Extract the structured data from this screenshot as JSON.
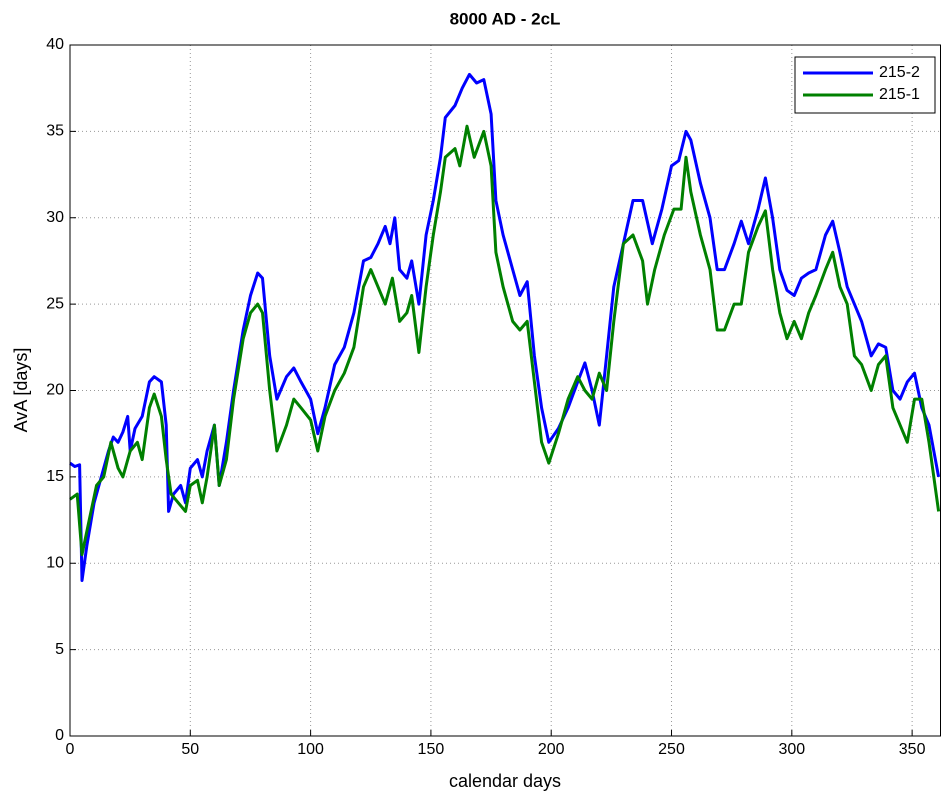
{
  "chart_data": {
    "type": "line",
    "title": "8000 AD - 2cL",
    "x_label": "calendar days",
    "y_label": "AvA [days]",
    "xlim": [
      0,
      362
    ],
    "ylim": [
      0,
      40
    ],
    "xticks": [
      0,
      50,
      100,
      150,
      200,
      250,
      300,
      350
    ],
    "yticks": [
      0,
      5,
      10,
      15,
      20,
      25,
      30,
      35,
      40
    ],
    "grid": true,
    "legend": "northeast",
    "series": [
      {
        "name": "215-2",
        "color": "#0000ff",
        "x": [
          0,
          2,
          4,
          5,
          7,
          10,
          13,
          16,
          18,
          20,
          22,
          24,
          25,
          27,
          30,
          33,
          35,
          38,
          40,
          41,
          43,
          46,
          48,
          50,
          53,
          55,
          57,
          60,
          62,
          65,
          68,
          72,
          75,
          78,
          80,
          83,
          86,
          90,
          93,
          96,
          100,
          103,
          106,
          110,
          114,
          118,
          122,
          125,
          128,
          131,
          133,
          135,
          137,
          140,
          142,
          145,
          148,
          151,
          154,
          156,
          160,
          163,
          166,
          169,
          172,
          175,
          177,
          180,
          184,
          187,
          190,
          193,
          196,
          199,
          203,
          207,
          211,
          214,
          217,
          220,
          223,
          226,
          230,
          234,
          238,
          242,
          246,
          250,
          253,
          256,
          258,
          262,
          266,
          269,
          272,
          276,
          279,
          282,
          286,
          289,
          292,
          295,
          298,
          301,
          304,
          307,
          310,
          314,
          317,
          320,
          323,
          326,
          329,
          333,
          336,
          339,
          342,
          345,
          348,
          351,
          354,
          357,
          361
        ],
        "values": [
          15.8,
          15.6,
          15.7,
          9,
          11,
          13.5,
          15,
          16.5,
          17.3,
          17,
          17.6,
          18.5,
          16.5,
          17.8,
          18.5,
          20.5,
          20.8,
          20.5,
          18,
          13,
          14,
          14.5,
          13.5,
          15.5,
          16,
          15,
          16.5,
          18,
          14.5,
          17,
          20,
          23.5,
          25.5,
          26.8,
          26.5,
          22,
          19.5,
          20.8,
          21.3,
          20.5,
          19.5,
          17.5,
          19,
          21.5,
          22.5,
          24.5,
          27.5,
          27.7,
          28.5,
          29.5,
          28.5,
          30,
          27,
          26.5,
          27.5,
          25,
          29,
          31,
          33.5,
          35.8,
          36.5,
          37.5,
          38.3,
          37.8,
          38,
          36,
          31,
          29,
          27,
          25.5,
          26.3,
          22,
          19,
          17,
          17.8,
          19,
          20.5,
          21.6,
          20,
          18,
          22,
          26,
          28.5,
          31,
          31,
          28.5,
          30.5,
          33,
          33.3,
          35,
          34.5,
          32,
          30,
          27,
          27,
          28.5,
          29.8,
          28.5,
          30.5,
          32.3,
          30,
          27,
          25.8,
          25.5,
          26.5,
          26.8,
          27,
          29,
          29.8,
          28,
          26,
          25,
          24,
          22,
          22.7,
          22.5,
          20,
          19.5,
          20.5,
          21,
          19,
          18,
          15
        ]
      },
      {
        "name": "215-1",
        "color": "#008000",
        "x": [
          0,
          3,
          5,
          8,
          11,
          14,
          17,
          20,
          22,
          25,
          28,
          30,
          33,
          35,
          38,
          40,
          42,
          45,
          48,
          50,
          53,
          55,
          57,
          60,
          62,
          65,
          68,
          72,
          75,
          78,
          80,
          83,
          86,
          90,
          93,
          96,
          100,
          103,
          106,
          110,
          114,
          118,
          122,
          125,
          128,
          131,
          134,
          137,
          140,
          142,
          145,
          148,
          151,
          154,
          156,
          160,
          162,
          165,
          168,
          172,
          175,
          177,
          180,
          184,
          187,
          190,
          193,
          196,
          199,
          203,
          207,
          211,
          214,
          217,
          220,
          223,
          226,
          230,
          234,
          238,
          240,
          243,
          247,
          251,
          254,
          256,
          258,
          262,
          266,
          269,
          272,
          276,
          279,
          282,
          286,
          289,
          292,
          295,
          298,
          301,
          304,
          307,
          310,
          314,
          317,
          320,
          323,
          326,
          329,
          333,
          336,
          339,
          342,
          345,
          348,
          351,
          354,
          357,
          361
        ],
        "values": [
          13.7,
          14,
          10.5,
          12.5,
          14.5,
          15,
          17,
          15.5,
          15,
          16.5,
          17,
          16,
          19,
          19.8,
          18.5,
          16,
          14,
          13.5,
          13,
          14.5,
          14.8,
          13.5,
          15,
          18,
          14.5,
          16,
          19.5,
          23,
          24.5,
          25,
          24.5,
          20,
          16.5,
          18,
          19.5,
          19,
          18.3,
          16.5,
          18.5,
          20,
          21,
          22.5,
          26,
          27,
          26,
          25,
          26.5,
          24,
          24.5,
          25.5,
          22.2,
          26,
          29,
          31.5,
          33.5,
          34,
          33,
          35.3,
          33.5,
          35,
          33,
          28,
          26,
          24,
          23.5,
          24,
          20.5,
          17,
          15.8,
          17.5,
          19.5,
          20.8,
          20,
          19.5,
          21,
          20,
          24,
          28.5,
          29,
          27.5,
          25,
          27,
          29,
          30.5,
          30.5,
          33.5,
          31.5,
          29,
          27,
          23.5,
          23.5,
          25,
          25,
          28,
          29.5,
          30.4,
          27,
          24.5,
          23,
          24,
          23,
          24.5,
          25.5,
          27,
          28,
          26,
          25,
          22,
          21.5,
          20,
          21.5,
          22,
          19,
          18,
          17,
          19.5,
          19.5,
          17,
          13
        ]
      }
    ]
  }
}
